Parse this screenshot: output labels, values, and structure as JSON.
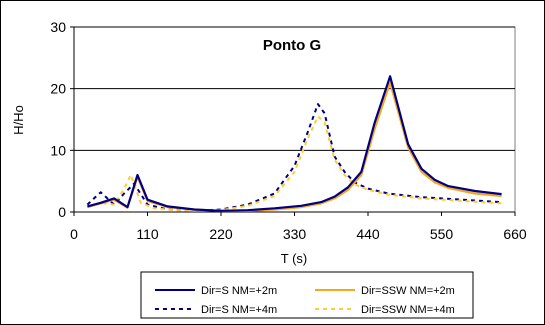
{
  "chart_data": {
    "type": "line",
    "title": "Ponto G",
    "xlabel": "T (s)",
    "ylabel": "H/Ho",
    "xlim": [
      0,
      660
    ],
    "ylim": [
      0,
      30
    ],
    "xticks": [
      0,
      110,
      220,
      330,
      440,
      550,
      660
    ],
    "yticks": [
      0,
      10,
      20,
      30
    ],
    "grid": "horizontal",
    "legend_position": "bottom",
    "colors": {
      "navy": "#000080",
      "orange": "#f5a623",
      "dashed_orange": "#ffcc33"
    },
    "series": [
      {
        "name": "Dir=S NM=+2m",
        "color": "#000080",
        "style": "solid",
        "x": [
          20,
          40,
          60,
          80,
          95,
          110,
          140,
          180,
          220,
          260,
          300,
          340,
          370,
          390,
          410,
          430,
          450,
          473,
          500,
          520,
          540,
          560,
          600,
          640
        ],
        "y": [
          0.9,
          1.5,
          2.2,
          0.8,
          6.0,
          2.0,
          0.9,
          0.4,
          0.2,
          0.3,
          0.6,
          1.0,
          1.6,
          2.5,
          4.0,
          6.5,
          14.5,
          22.0,
          11.0,
          7.0,
          5.2,
          4.2,
          3.4,
          2.9
        ]
      },
      {
        "name": "Dir=SSW NM=+2m",
        "color": "#f5a623",
        "style": "solid",
        "x": [
          20,
          40,
          60,
          80,
          95,
          110,
          140,
          180,
          220,
          260,
          300,
          340,
          370,
          390,
          410,
          430,
          450,
          473,
          500,
          520,
          540,
          560,
          600,
          640
        ],
        "y": [
          0.8,
          1.4,
          2.0,
          0.7,
          5.7,
          1.8,
          0.8,
          0.4,
          0.2,
          0.2,
          0.4,
          0.8,
          1.4,
          2.2,
          3.6,
          6.0,
          13.5,
          21.0,
          10.5,
          6.5,
          4.8,
          3.9,
          3.0,
          2.6
        ]
      },
      {
        "name": "Dir=S NM=+4m",
        "color": "#000080",
        "style": "dashed",
        "x": [
          20,
          30,
          40,
          50,
          60,
          75,
          90,
          110,
          140,
          180,
          220,
          260,
          300,
          330,
          350,
          365,
          375,
          390,
          405,
          420,
          440,
          470,
          520,
          580,
          640
        ],
        "y": [
          1.2,
          2.2,
          3.2,
          2.2,
          1.2,
          3.0,
          4.6,
          1.2,
          0.4,
          0.2,
          0.4,
          1.2,
          3.0,
          7.5,
          13.0,
          17.5,
          16.0,
          9.0,
          6.5,
          4.8,
          3.8,
          3.0,
          2.4,
          2.0,
          1.6
        ]
      },
      {
        "name": "Dir=SSW NM=+4m",
        "color": "#ffcc33",
        "style": "dashed",
        "x": [
          20,
          40,
          60,
          75,
          85,
          100,
          120,
          150,
          180,
          220,
          260,
          300,
          330,
          350,
          365,
          375,
          390,
          405,
          420,
          440,
          470,
          520,
          580,
          640
        ],
        "y": [
          0.8,
          1.5,
          1.2,
          3.8,
          6.0,
          1.5,
          0.6,
          0.3,
          0.2,
          0.3,
          1.0,
          2.6,
          6.5,
          12.0,
          15.5,
          14.5,
          8.5,
          6.0,
          4.5,
          3.6,
          2.8,
          2.2,
          1.8,
          1.4
        ]
      }
    ]
  }
}
